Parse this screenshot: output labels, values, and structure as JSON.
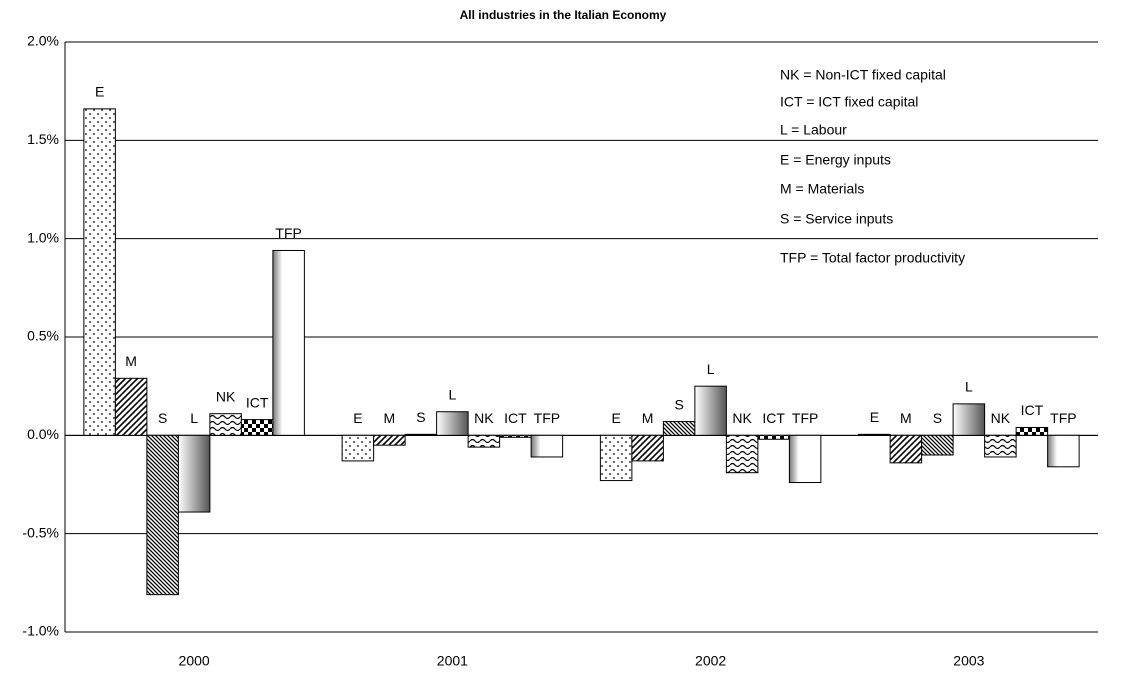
{
  "chart_data": {
    "type": "bar",
    "title": "All industries in the Italian Economy",
    "categories": [
      "2000",
      "2001",
      "2002",
      "2003"
    ],
    "series": [
      {
        "name": "E",
        "color": "#000000",
        "pattern": "dots",
        "values": [
          1.66,
          -0.13,
          -0.23,
          0.005
        ]
      },
      {
        "name": "M",
        "color": "#000000",
        "pattern": "diagonal",
        "values": [
          0.29,
          -0.05,
          -0.13,
          -0.14
        ]
      },
      {
        "name": "S",
        "color": "#000000",
        "pattern": "dense-diagonal",
        "values": [
          -0.81,
          0.005,
          0.07,
          -0.1
        ]
      },
      {
        "name": "L",
        "color": "#000000",
        "pattern": "gray-gradient",
        "values": [
          -0.39,
          0.12,
          0.25,
          0.16
        ]
      },
      {
        "name": "NK",
        "color": "#000000",
        "pattern": "waves",
        "values": [
          0.11,
          -0.06,
          -0.19,
          -0.11
        ]
      },
      {
        "name": "ICT",
        "color": "#000000",
        "pattern": "checker",
        "values": [
          0.08,
          -0.01,
          -0.02,
          0.04
        ]
      },
      {
        "name": "TFP",
        "color": "#000000",
        "pattern": "white-gradient",
        "values": [
          0.94,
          -0.11,
          -0.24,
          -0.16
        ]
      }
    ],
    "annotations": [
      "NK = Non-ICT fixed capital",
      "ICT = ICT fixed capital",
      "L = Labour",
      "E = Energy inputs",
      "M = Materials",
      "S = Service inputs",
      "TFP = Total factor productivity"
    ],
    "ylim": [
      -1.0,
      2.0
    ],
    "yticks": [
      {
        "value": -1.0,
        "label": "-1.0%"
      },
      {
        "value": -0.5,
        "label": "-0.5%"
      },
      {
        "value": 0.0,
        "label": "0.0%"
      },
      {
        "value": 0.5,
        "label": "0.5%"
      },
      {
        "value": 1.0,
        "label": "1.0%"
      },
      {
        "value": 1.5,
        "label": "1.5%"
      },
      {
        "value": 2.0,
        "label": "2.0%"
      }
    ],
    "grid": true
  }
}
